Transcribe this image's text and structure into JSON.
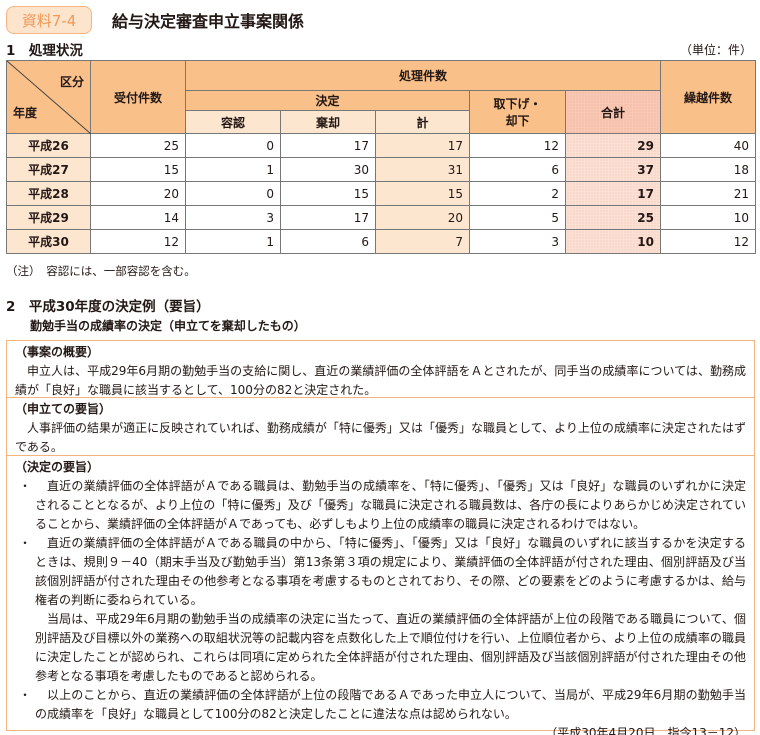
{
  "header": {
    "badge": "資料7-4",
    "title": "給与決定審査申立事案関係"
  },
  "section1": {
    "title": "1　処理状況",
    "unit": "（単位：件）",
    "headers": {
      "kubun": "区分",
      "nendo": "年度",
      "uketsuke": "受付件数",
      "shori": "処理件数",
      "kettei": "決定",
      "yonin": "容認",
      "kikyaku": "棄却",
      "kei": "計",
      "torisage": "取下げ・却下",
      "gokei": "合計",
      "kurikoshi": "繰越件数"
    },
    "rows": [
      {
        "year": "平成26",
        "uketsuke": "25",
        "yonin": "0",
        "kikyaku": "17",
        "kei": "17",
        "torisage": "12",
        "gokei": "29",
        "kurikoshi": "40"
      },
      {
        "year": "平成27",
        "uketsuke": "15",
        "yonin": "1",
        "kikyaku": "30",
        "kei": "31",
        "torisage": "6",
        "gokei": "37",
        "kurikoshi": "18"
      },
      {
        "year": "平成28",
        "uketsuke": "20",
        "yonin": "0",
        "kikyaku": "15",
        "kei": "15",
        "torisage": "2",
        "gokei": "17",
        "kurikoshi": "21"
      },
      {
        "year": "平成29",
        "uketsuke": "14",
        "yonin": "3",
        "kikyaku": "17",
        "kei": "20",
        "torisage": "5",
        "gokei": "25",
        "kurikoshi": "10"
      },
      {
        "year": "平成30",
        "uketsuke": "12",
        "yonin": "1",
        "kikyaku": "6",
        "kei": "7",
        "torisage": "3",
        "gokei": "10",
        "kurikoshi": "12"
      }
    ],
    "note": "（注）　容認には、一部容認を含む。"
  },
  "section2": {
    "title": "2　平成30年度の決定例（要旨）",
    "subtitle": "勤勉手当の成績率の決定（申立てを棄却したもの）",
    "gaiyo_head": "（事案の概要）",
    "gaiyo_text": "申立人は、平成29年6月期の勤勉手当の支給に関し、直近の業績評価の全体評語をＡとされたが、同手当の成績率については、勤務成績が「良好」な職員に該当するとして、100分の82と決定された。",
    "youshi_head": "（申立ての要旨）",
    "youshi_text": "人事評価の結果が適正に反映されていれば、勤務成績が「特に優秀」又は「優秀」な職員として、より上位の成績率に決定されたはずである。",
    "kettei_head": "（決定の要旨）",
    "bullet": "・",
    "kettei_1": "直近の業績評価の全体評語がＡである職員は、勤勉手当の成績率を、「特に優秀」、「優秀」又は「良好」な職員のいずれかに決定されることとなるが、より上位の「特に優秀」及び「優秀」な職員に決定される職員数は、各庁の長によりあらかじめ決定されていることから、業績評価の全体評語がＡであっても、必ずしもより上位の成績率の職員に決定されるわけではない。",
    "kettei_2a": "直近の業績評価の全体評語がＡである職員の中から、「特に優秀」、「優秀」又は「良好」な職員のいずれに該当するかを決定するときは、規則９－40（期末手当及び勤勉手当）第13条第３項の規定により、業績評価の全体評語が付された理由、個別評語及び当該個別評語が付された理由その他参考となる事項を考慮するものとされており、その際、どの要素をどのように考慮するかは、給与権者の判断に委ねられている。",
    "kettei_2b": "当局は、平成29年6月期の勤勉手当の成績率の決定に当たって、直近の業績評価の全体評語が上位の段階である職員について、個別評語及び目標以外の業務への取組状況等の記載内容を点数化した上で順位付けを行い、上位順位者から、より上位の成績率の職員に決定したことが認められ、これらは同項に定められた全体評語が付された理由、個別評語及び当該個別評語が付された理由その他参考となる事項を考慮したものであると認められる。",
    "kettei_3": "以上のことから、直近の業績評価の全体評語が上位の段階であるＡであった申立人について、当局が、平成29年6月期の勤勉手当の成績率を「良好」な職員として100分の82と決定したことに違法な点は認められない。",
    "reference": "（平成30年4月20日　指令13－12）"
  },
  "colors": {
    "accent": "#f5b47f",
    "header": "#f9c089",
    "light": "#fde6d0",
    "total": "#f9c7b3"
  }
}
